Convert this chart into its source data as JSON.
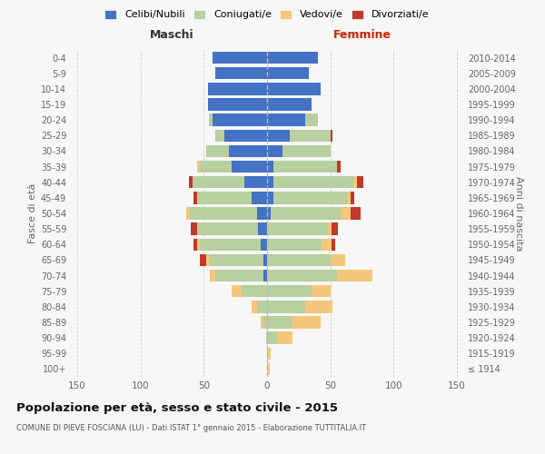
{
  "age_groups": [
    "100+",
    "95-99",
    "90-94",
    "85-89",
    "80-84",
    "75-79",
    "70-74",
    "65-69",
    "60-64",
    "55-59",
    "50-54",
    "45-49",
    "40-44",
    "35-39",
    "30-34",
    "25-29",
    "20-24",
    "15-19",
    "10-14",
    "5-9",
    "0-4"
  ],
  "birth_years": [
    "≤ 1914",
    "1915-1919",
    "1920-1924",
    "1925-1929",
    "1930-1934",
    "1935-1939",
    "1940-1944",
    "1945-1949",
    "1950-1954",
    "1955-1959",
    "1960-1964",
    "1965-1969",
    "1970-1974",
    "1975-1979",
    "1980-1984",
    "1985-1989",
    "1990-1994",
    "1995-1999",
    "2000-2004",
    "2005-2009",
    "2010-2014"
  ],
  "males": {
    "celibe": [
      0,
      0,
      0,
      0,
      0,
      0,
      3,
      3,
      5,
      7,
      8,
      12,
      18,
      28,
      30,
      34,
      43,
      47,
      47,
      41,
      43
    ],
    "coniugato": [
      0,
      0,
      1,
      3,
      8,
      20,
      38,
      42,
      48,
      48,
      53,
      43,
      41,
      25,
      18,
      7,
      3,
      0,
      0,
      0,
      0
    ],
    "vedovo": [
      0,
      0,
      0,
      2,
      4,
      8,
      4,
      3,
      2,
      0,
      3,
      0,
      0,
      2,
      0,
      0,
      0,
      0,
      0,
      0,
      0
    ],
    "divorziato": [
      0,
      0,
      0,
      0,
      0,
      0,
      0,
      5,
      3,
      5,
      0,
      3,
      3,
      0,
      0,
      0,
      0,
      0,
      0,
      0,
      0
    ]
  },
  "females": {
    "nubile": [
      0,
      0,
      0,
      0,
      0,
      0,
      0,
      0,
      0,
      0,
      3,
      5,
      5,
      5,
      12,
      18,
      30,
      35,
      42,
      33,
      40
    ],
    "coniugata": [
      1,
      1,
      8,
      20,
      30,
      35,
      55,
      50,
      43,
      48,
      55,
      58,
      63,
      50,
      38,
      32,
      10,
      0,
      0,
      0,
      0
    ],
    "vedova": [
      1,
      2,
      12,
      22,
      22,
      15,
      28,
      12,
      8,
      3,
      8,
      3,
      3,
      0,
      0,
      0,
      0,
      0,
      0,
      0,
      0
    ],
    "divorziata": [
      0,
      0,
      0,
      0,
      0,
      0,
      0,
      0,
      3,
      5,
      8,
      3,
      5,
      3,
      0,
      2,
      0,
      0,
      0,
      0,
      0
    ]
  },
  "color_celibe": "#4472c4",
  "color_coniugato": "#b8cfa0",
  "color_vedovo": "#f5c77a",
  "color_divorziato": "#c0392b",
  "title": "Popolazione per età, sesso e stato civile - 2015",
  "subtitle": "COMUNE DI PIEVE FOSCIANA (LU) - Dati ISTAT 1° gennaio 2015 - Elaborazione TUTTITALIA.IT",
  "xlabel_left": "Maschi",
  "xlabel_right": "Femmine",
  "ylabel_left": "Fasce di età",
  "ylabel_right": "Anni di nascita",
  "xlim": 155,
  "bg_color": "#f7f7f7",
  "grid_color": "#cccccc",
  "legend_labels": [
    "Celibi/Nubili",
    "Coniugati/e",
    "Vedovi/e",
    "Divorziati/e"
  ]
}
